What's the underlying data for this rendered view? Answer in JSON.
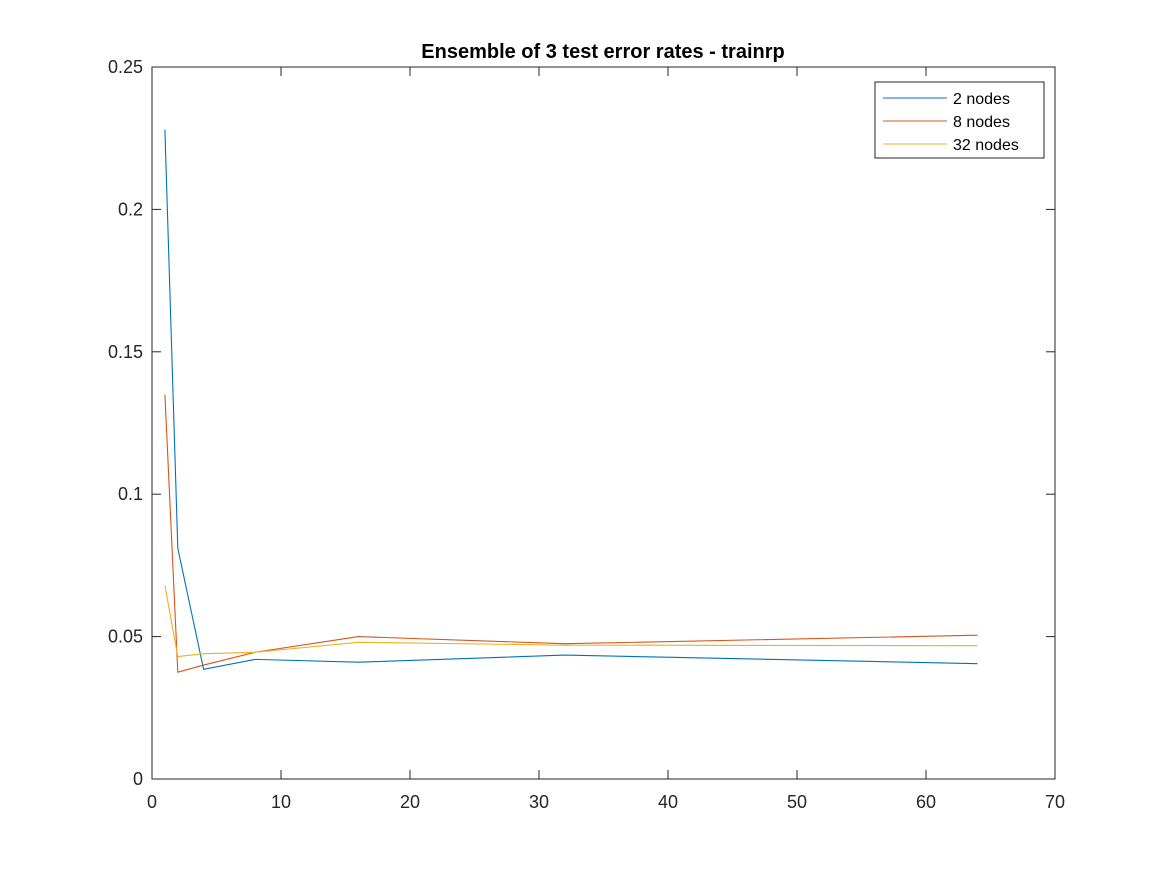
{
  "chart_data": {
    "type": "line",
    "title": "Ensemble of 3 test error rates - trainrp",
    "xlabel": "",
    "ylabel": "",
    "xlim": [
      0,
      70
    ],
    "ylim": [
      0,
      0.25
    ],
    "x_ticks": [
      "0",
      "10",
      "20",
      "30",
      "40",
      "50",
      "60",
      "70"
    ],
    "y_ticks": [
      "0",
      "0.05",
      "0.1",
      "0.15",
      "0.2",
      "0.25"
    ],
    "x": [
      1,
      2,
      4,
      8,
      16,
      32,
      64
    ],
    "series": [
      {
        "name": "2 nodes",
        "color": "#0072BD",
        "values": [
          0.228,
          0.081,
          0.0385,
          0.042,
          0.041,
          0.0435,
          0.0405
        ]
      },
      {
        "name": "8 nodes",
        "color": "#D95319",
        "values": [
          0.135,
          0.0375,
          0.04,
          0.0445,
          0.05,
          0.0475,
          0.0505
        ]
      },
      {
        "name": "32 nodes",
        "color": "#EDB120",
        "values": [
          0.068,
          0.043,
          0.044,
          0.0445,
          0.048,
          0.047,
          0.0468
        ]
      }
    ],
    "grid": false,
    "legend_position": "top-right",
    "box": true
  }
}
